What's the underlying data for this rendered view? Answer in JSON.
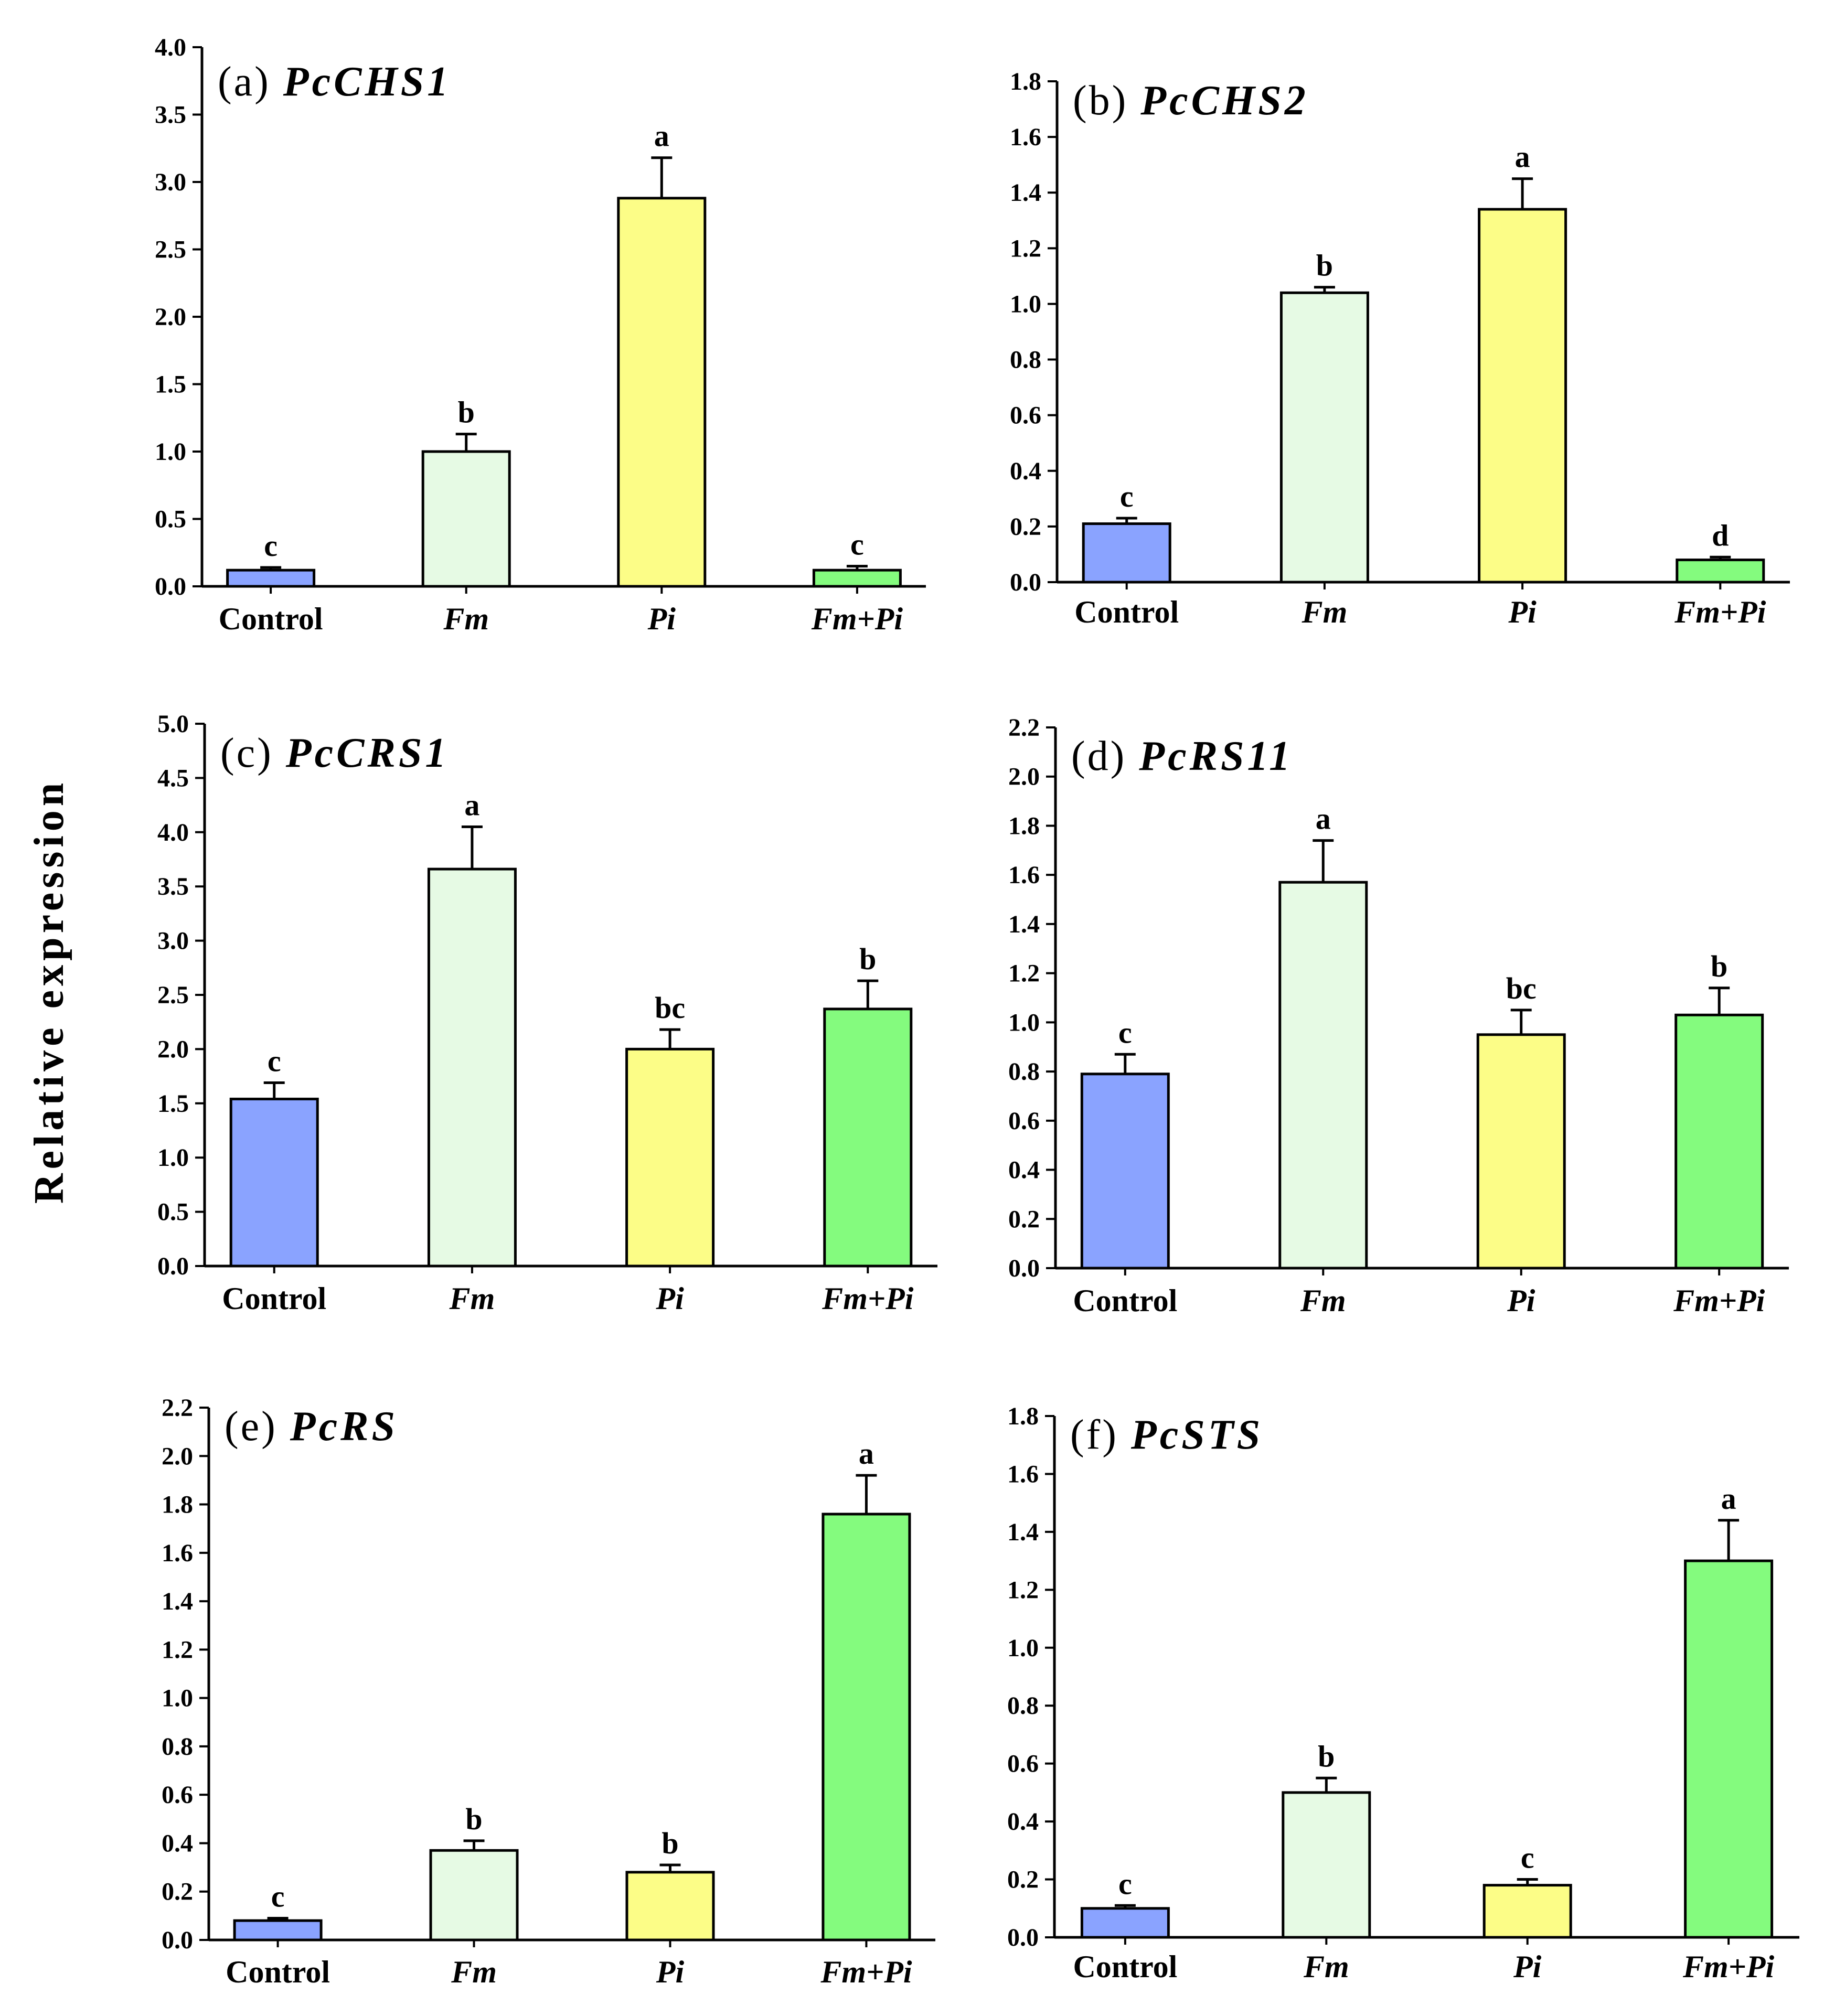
{
  "figure": {
    "ylabel": "Relative expression",
    "colors": {
      "Control": "#8aa3ff",
      "Fm": "#e6fae4",
      "Pi": "#fcfd87",
      "Fm+Pi": "#84fb7e",
      "axis": "#000000",
      "bar_edge": "#000000"
    }
  },
  "chart_data": [
    {
      "type": "bar",
      "panel": "(a)",
      "title": "PcCHS1",
      "categories": [
        "Control",
        "Fm",
        "Pi",
        "Fm+Pi"
      ],
      "values": [
        0.12,
        1.0,
        2.88,
        0.12
      ],
      "errors": [
        0.02,
        0.13,
        0.3,
        0.03
      ],
      "significance": [
        "c",
        "b",
        "a",
        "c"
      ],
      "ylim": [
        0,
        4.0
      ],
      "yticks": [
        "0.0",
        "0.5",
        "1.0",
        "1.5",
        "2.0",
        "2.5",
        "3.0",
        "3.5",
        "4.0"
      ],
      "ylabel": "Relative expression"
    },
    {
      "type": "bar",
      "panel": "(b)",
      "title": "PcCHS2",
      "categories": [
        "Control",
        "Fm",
        "Pi",
        "Fm+Pi"
      ],
      "values": [
        0.21,
        1.04,
        1.34,
        0.08
      ],
      "errors": [
        0.02,
        0.02,
        0.11,
        0.01
      ],
      "significance": [
        "c",
        "b",
        "a",
        "d"
      ],
      "ylim": [
        0,
        1.8
      ],
      "yticks": [
        "0.0",
        "0.2",
        "0.4",
        "0.6",
        "0.8",
        "1.0",
        "1.2",
        "1.4",
        "1.6",
        "1.8"
      ],
      "ylabel": "Relative expression"
    },
    {
      "type": "bar",
      "panel": "(c)",
      "title": "PcCRS1",
      "categories": [
        "Control",
        "Fm",
        "Pi",
        "Fm+Pi"
      ],
      "values": [
        1.54,
        3.66,
        2.0,
        2.37
      ],
      "errors": [
        0.15,
        0.39,
        0.18,
        0.26
      ],
      "significance": [
        "c",
        "a",
        "bc",
        "b"
      ],
      "ylim": [
        0,
        5.0
      ],
      "yticks": [
        "0.0",
        "0.5",
        "1.0",
        "1.5",
        "2.0",
        "2.5",
        "3.0",
        "3.5",
        "4.0",
        "4.5",
        "5.0"
      ],
      "ylabel": "Relative expression"
    },
    {
      "type": "bar",
      "panel": "(d)",
      "title": "PcRS11",
      "categories": [
        "Control",
        "Fm",
        "Pi",
        "Fm+Pi"
      ],
      "values": [
        0.79,
        1.57,
        0.95,
        1.03
      ],
      "errors": [
        0.08,
        0.17,
        0.1,
        0.11
      ],
      "significance": [
        "c",
        "a",
        "bc",
        "b"
      ],
      "ylim": [
        0,
        2.2
      ],
      "yticks": [
        "0.0",
        "0.2",
        "0.4",
        "0.6",
        "0.8",
        "1.0",
        "1.2",
        "1.4",
        "1.6",
        "1.8",
        "2.0",
        "2.2"
      ],
      "ylabel": "Relative expression"
    },
    {
      "type": "bar",
      "panel": "(e)",
      "title": "PcRS",
      "categories": [
        "Control",
        "Fm",
        "Pi",
        "Fm+Pi"
      ],
      "values": [
        0.08,
        0.37,
        0.28,
        1.76
      ],
      "errors": [
        0.01,
        0.04,
        0.03,
        0.16
      ],
      "significance": [
        "c",
        "b",
        "b",
        "a"
      ],
      "ylim": [
        0,
        2.2
      ],
      "yticks": [
        "0.0",
        "0.2",
        "0.4",
        "0.6",
        "0.8",
        "1.0",
        "1.2",
        "1.4",
        "1.6",
        "1.8",
        "2.0",
        "2.2"
      ],
      "ylabel": "Relative expression"
    },
    {
      "type": "bar",
      "panel": "(f)",
      "title": "PcSTS",
      "categories": [
        "Control",
        "Fm",
        "Pi",
        "Fm+Pi"
      ],
      "values": [
        0.1,
        0.5,
        0.18,
        1.3
      ],
      "errors": [
        0.01,
        0.05,
        0.02,
        0.14
      ],
      "significance": [
        "c",
        "b",
        "c",
        "a"
      ],
      "ylim": [
        0,
        1.8
      ],
      "yticks": [
        "0.0",
        "0.2",
        "0.4",
        "0.6",
        "0.8",
        "1.0",
        "1.2",
        "1.4",
        "1.6",
        "1.8"
      ],
      "ylabel": "Relative expression"
    }
  ]
}
